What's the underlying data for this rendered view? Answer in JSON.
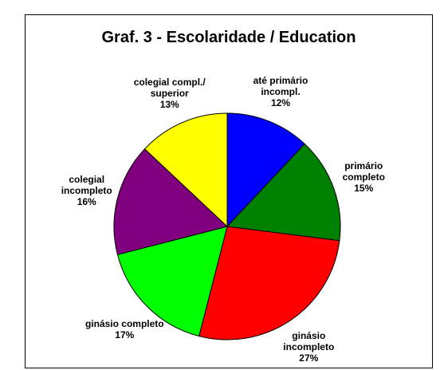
{
  "chart_data": {
    "type": "pie",
    "title": "Graf. 3 - Escolaridade / Education",
    "categories": [
      "até primário incompl.",
      "primário completo",
      "ginásio incompleto",
      "ginásio completo",
      "colegial incompleto",
      "colegial compl./ superior"
    ],
    "values": [
      12,
      15,
      27,
      17,
      16,
      13
    ],
    "value_labels": [
      "12%",
      "15%",
      "27%",
      "17%",
      "16%",
      "13%"
    ],
    "colors": [
      "#0000ff",
      "#008000",
      "#ff0000",
      "#00ff00",
      "#800080",
      "#ffff00"
    ]
  }
}
